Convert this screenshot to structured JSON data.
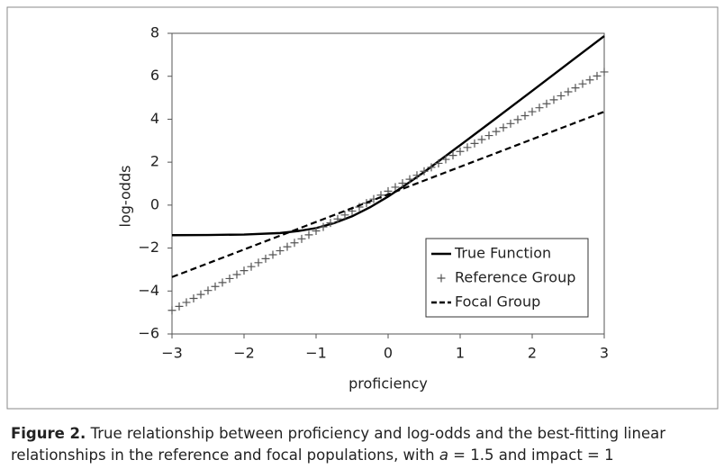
{
  "chart_data": {
    "type": "line",
    "xlabel": "proficiency",
    "ylabel": "log-odds",
    "xlim": [
      -3,
      3
    ],
    "ylim": [
      -6,
      8
    ],
    "xticks": [
      {
        "value": -3,
        "label": "−3"
      },
      {
        "value": -2,
        "label": "−2"
      },
      {
        "value": -1,
        "label": "−1"
      },
      0,
      1,
      2,
      3
    ],
    "yticks": [
      {
        "value": -6,
        "label": "−6"
      },
      {
        "value": -4,
        "label": "−4"
      },
      {
        "value": -2,
        "label": "−2"
      },
      0,
      2,
      4,
      6,
      8
    ],
    "grid": false,
    "legend": "lower right",
    "series": [
      {
        "name": "True Function",
        "color": "#000000",
        "style": "solid",
        "x": [
          -3,
          -2.5,
          -2,
          -1.5,
          -1.25,
          -1,
          -0.75,
          -0.5,
          -0.25,
          0,
          0.25,
          0.5,
          1,
          1.5,
          2,
          2.5,
          3
        ],
        "values": [
          -1.4,
          -1.39,
          -1.37,
          -1.3,
          -1.21,
          -1.07,
          -0.84,
          -0.52,
          -0.1,
          0.4,
          0.96,
          1.54,
          2.79,
          4.05,
          5.32,
          6.6,
          7.87
        ]
      },
      {
        "name": "Reference Group",
        "color": "#555555",
        "style": "plus",
        "x": [
          -3,
          -2.9,
          -2.8,
          -2.7,
          -2.6,
          -2.5,
          -2.4,
          -2.3,
          -2.2,
          -2.1,
          -2,
          -1.9,
          -1.8,
          -1.7,
          -1.6,
          -1.5,
          -1.4,
          -1.3,
          -1.2,
          -1.1,
          -1,
          -0.9,
          -0.8,
          -0.7,
          -0.6,
          -0.5,
          -0.4,
          -0.3,
          -0.2,
          -0.1,
          0,
          0.1,
          0.2,
          0.3,
          0.4,
          0.5,
          0.6,
          0.7,
          0.8,
          0.9,
          1,
          1.1,
          1.2,
          1.3,
          1.4,
          1.5,
          1.6,
          1.7,
          1.8,
          1.9,
          2,
          2.1,
          2.2,
          2.3,
          2.4,
          2.5,
          2.6,
          2.7,
          2.8,
          2.9,
          3
        ],
        "values": [
          -4.9,
          -4.715,
          -4.53,
          -4.345,
          -4.16,
          -3.975,
          -3.79,
          -3.605,
          -3.42,
          -3.235,
          -3.05,
          -2.865,
          -2.68,
          -2.495,
          -2.31,
          -2.125,
          -1.94,
          -1.755,
          -1.57,
          -1.385,
          -1.2,
          -1.015,
          -0.83,
          -0.645,
          -0.46,
          -0.275,
          -0.09,
          0.095,
          0.28,
          0.465,
          0.65,
          0.835,
          1.02,
          1.205,
          1.39,
          1.575,
          1.76,
          1.945,
          2.13,
          2.315,
          2.5,
          2.685,
          2.87,
          3.055,
          3.24,
          3.425,
          3.61,
          3.795,
          3.98,
          4.165,
          4.35,
          4.535,
          4.72,
          4.905,
          5.09,
          5.275,
          5.46,
          5.645,
          5.83,
          6.015,
          6.2
        ]
      },
      {
        "name": "Focal Group",
        "color": "#000000",
        "style": "dashed",
        "x": [
          -3,
          3
        ],
        "values": [
          -3.35,
          4.35
        ]
      }
    ]
  },
  "figure_caption": {
    "label": "Figure 2.",
    "text": "True relationship between proficiency and log-odds and the best-fitting linear relationships in the reference and focal populations, with ",
    "symbol": "a",
    "text_end": " = 1.5 and impact = 1"
  }
}
